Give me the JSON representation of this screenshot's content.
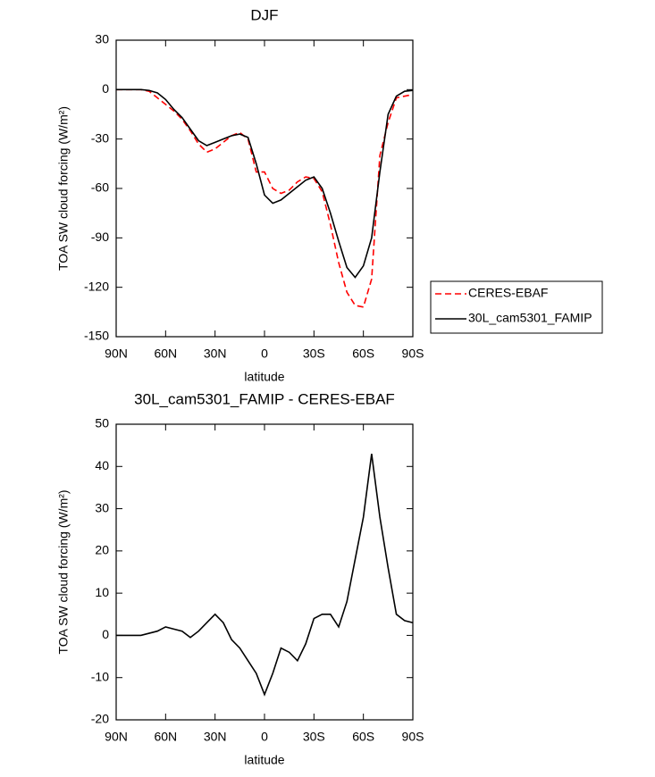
{
  "chart_data": [
    {
      "type": "line",
      "title": "DJF",
      "xlabel": "latitude",
      "ylabel": "TOA SW cloud forcing (W/m²)",
      "x": [
        90,
        85,
        80,
        75,
        70,
        65,
        60,
        55,
        50,
        45,
        40,
        35,
        30,
        25,
        20,
        15,
        10,
        5,
        0,
        -5,
        -10,
        -15,
        -20,
        -25,
        -30,
        -35,
        -40,
        -45,
        -50,
        -55,
        -60,
        -65,
        -70,
        -75,
        -80,
        -85,
        -90
      ],
      "series": [
        {
          "name": "CERES-EBAF",
          "color": "#ff0000",
          "linestyle": "dashed",
          "values": [
            0,
            0,
            0,
            0,
            -1,
            -5,
            -9,
            -13,
            -18,
            -25,
            -33,
            -38,
            -36,
            -32,
            -28,
            -26,
            -30,
            -50,
            -50,
            -60,
            -63,
            -61,
            -56,
            -53,
            -54,
            -62,
            -82,
            -105,
            -123,
            -131,
            -132,
            -115,
            -40,
            -20,
            -5,
            -4,
            -3
          ]
        },
        {
          "name": "30L_cam5301_FAMIP",
          "color": "#000000",
          "linestyle": "solid",
          "values": [
            0,
            0,
            0,
            0,
            -0.5,
            -2,
            -6,
            -12,
            -17,
            -24,
            -31,
            -34,
            -32,
            -30,
            -28,
            -27,
            -29,
            -45,
            -64,
            -69,
            -67,
            -63,
            -59,
            -55,
            -53,
            -60,
            -75,
            -92,
            -108,
            -114,
            -107,
            -90,
            -50,
            -15,
            -4,
            -1,
            -0.5
          ]
        }
      ],
      "xlim": [
        90,
        -90
      ],
      "xticks": [
        {
          "value": 90,
          "label": "90N"
        },
        {
          "value": 60,
          "label": "60N"
        },
        {
          "value": 30,
          "label": "30N"
        },
        0,
        {
          "value": -30,
          "label": "30S"
        },
        {
          "value": -60,
          "label": "60S"
        },
        {
          "value": -90,
          "label": "90S"
        }
      ],
      "ylim": [
        -150,
        30
      ],
      "yticks": [
        -150,
        -120,
        -90,
        -60,
        -30,
        0,
        30
      ],
      "legend": "outside-right"
    },
    {
      "type": "line",
      "title": "30L_cam5301_FAMIP - CERES-EBAF",
      "xlabel": "latitude",
      "ylabel": "TOA SW cloud forcing (W/m²)",
      "x": [
        90,
        85,
        80,
        75,
        70,
        65,
        60,
        55,
        50,
        45,
        40,
        35,
        30,
        25,
        20,
        15,
        10,
        5,
        0,
        -5,
        -10,
        -15,
        -20,
        -25,
        -30,
        -35,
        -40,
        -45,
        -50,
        -55,
        -60,
        -65,
        -70,
        -75,
        -80,
        -85,
        -90
      ],
      "values": [
        0,
        0,
        0,
        0,
        0.5,
        1,
        2,
        1.5,
        1,
        -0.5,
        1,
        3,
        5,
        3,
        -1,
        -3,
        -6,
        -9,
        -14,
        -9,
        -3,
        -4,
        -6,
        -2,
        4,
        5,
        5,
        2,
        8,
        18,
        28,
        43,
        28,
        16,
        5,
        3.5,
        3
      ],
      "color": "#000000",
      "xlim": [
        90,
        -90
      ],
      "xticks": [
        {
          "value": 90,
          "label": "90N"
        },
        {
          "value": 60,
          "label": "60N"
        },
        {
          "value": 30,
          "label": "30N"
        },
        0,
        {
          "value": -30,
          "label": "30S"
        },
        {
          "value": -60,
          "label": "60S"
        },
        {
          "value": -90,
          "label": "90S"
        }
      ],
      "ylim": [
        -20,
        50
      ],
      "yticks": [
        -20,
        -10,
        0,
        10,
        20,
        30,
        40,
        50
      ]
    }
  ]
}
